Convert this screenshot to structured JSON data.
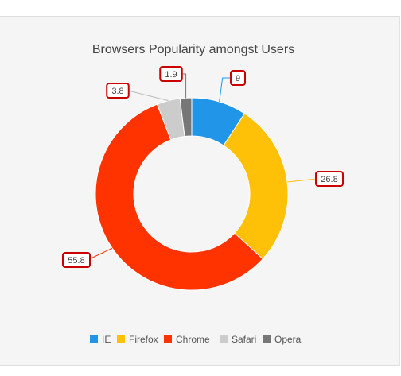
{
  "chart_data": {
    "type": "pie",
    "variant": "doughnut",
    "title": "Browsers Popularity amongst Users",
    "categories": [
      "IE",
      "Firefox",
      "Chrome",
      "Safari",
      "Opera"
    ],
    "values": [
      9,
      26.8,
      55.8,
      3.8,
      1.9
    ],
    "data_labels": [
      "9",
      "26.8",
      "55.8",
      "3.8",
      "1.9"
    ],
    "colors": [
      "#2196e8",
      "#ffc107",
      "#ff3300",
      "#cccccc",
      "#777777"
    ],
    "label_box_border_color": "#cc0000",
    "legend_position": "bottom"
  }
}
